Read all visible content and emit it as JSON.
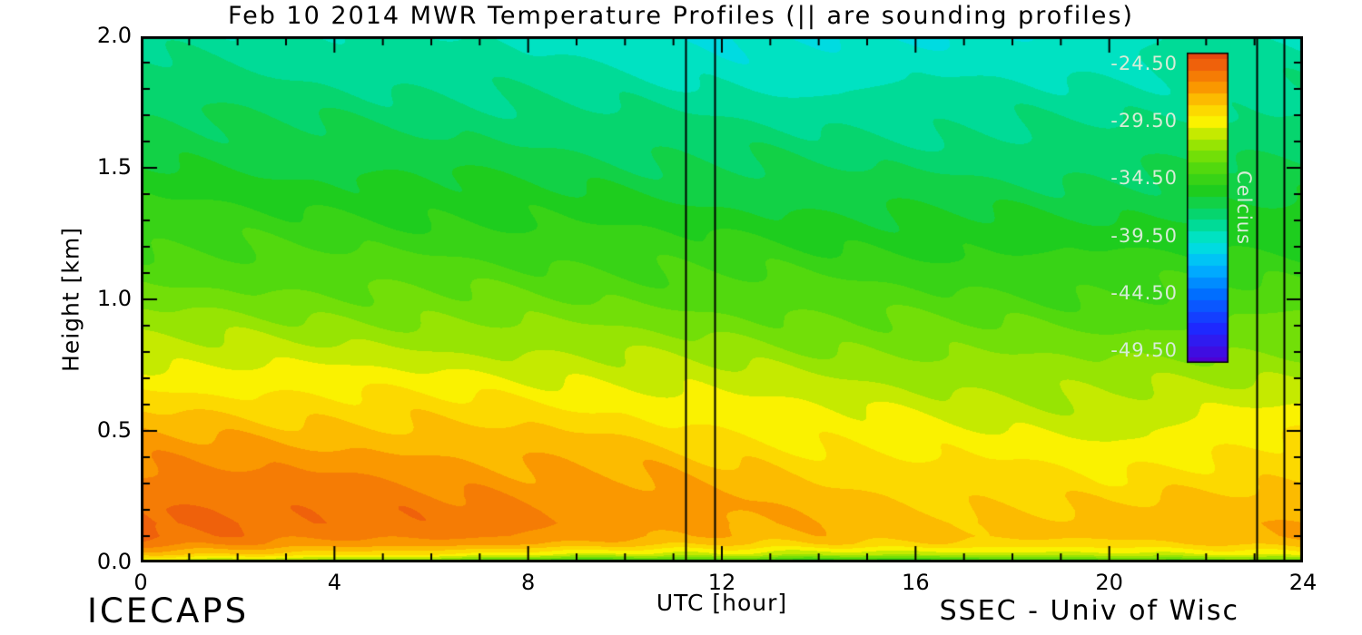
{
  "figure": {
    "footer_left": "ICECAPS",
    "footer_right": "SSEC - Univ of Wisc",
    "background_color": "#ffffff",
    "text_color": "#000000"
  },
  "chart_data": {
    "type": "heatmap",
    "title": "Feb 10 2014 MWR Temperature Profiles (|| are sounding profiles)",
    "xlabel": "UTC [hour]",
    "ylabel": "Height [km]",
    "xlim": [
      0,
      24
    ],
    "ylim": [
      0,
      2
    ],
    "xticks_major": [
      0,
      4,
      8,
      12,
      16,
      20,
      24
    ],
    "xtick_labels": [
      "0",
      "4",
      "8",
      "12",
      "16",
      "20",
      "24"
    ],
    "xticks_minor_step": 1,
    "yticks_major": [
      0.0,
      0.5,
      1.0,
      1.5,
      2.0
    ],
    "ytick_labels": [
      "0.0",
      "0.5",
      "1.0",
      "1.5",
      "2.0"
    ],
    "yticks_minor_step": 0.1,
    "grid": false,
    "contour_interval_c": 1.0,
    "sounding_profile_times_utc": [
      11.25,
      11.85,
      23.05,
      23.6
    ],
    "x_hours": [
      0,
      2,
      4,
      6,
      8,
      10,
      12,
      14,
      16,
      18,
      20,
      22,
      24
    ],
    "y_heights_km": [
      0.0,
      0.03,
      0.07,
      0.1,
      0.15,
      0.2,
      0.25,
      0.3,
      0.4,
      0.5,
      0.6,
      0.7,
      0.8,
      0.9,
      1.0,
      1.2,
      1.4,
      1.6,
      1.8,
      2.0
    ],
    "temperature_c": [
      [
        -31.5,
        -32.0,
        -32.5,
        -33.0,
        -35.5,
        -36.0,
        -34.5,
        -36.0,
        -36.5,
        -35.5,
        -34.5,
        -34.0,
        -33.5
      ],
      [
        -28.0,
        -28.2,
        -28.5,
        -28.8,
        -30.0,
        -30.5,
        -30.0,
        -30.8,
        -31.0,
        -30.5,
        -30.2,
        -30.0,
        -29.8
      ],
      [
        -25.8,
        -26.0,
        -26.3,
        -26.5,
        -27.2,
        -27.5,
        -27.8,
        -28.2,
        -28.4,
        -28.3,
        -28.2,
        -28.0,
        -27.8
      ],
      [
        -25.0,
        -25.2,
        -25.6,
        -25.8,
        -26.3,
        -26.6,
        -27.0,
        -27.5,
        -27.8,
        -27.7,
        -27.6,
        -27.4,
        -27.2
      ],
      [
        -24.7,
        -24.9,
        -25.3,
        -25.5,
        -25.9,
        -26.2,
        -26.8,
        -27.4,
        -27.7,
        -27.6,
        -27.5,
        -27.3,
        -27.1
      ],
      [
        -24.8,
        -25.0,
        -25.4,
        -25.6,
        -25.9,
        -26.3,
        -26.9,
        -27.5,
        -27.9,
        -27.9,
        -28.0,
        -27.6,
        -27.3
      ],
      [
        -25.0,
        -25.3,
        -25.6,
        -25.8,
        -26.1,
        -26.5,
        -27.1,
        -27.7,
        -28.1,
        -28.2,
        -28.4,
        -27.9,
        -27.5
      ],
      [
        -25.4,
        -25.7,
        -25.9,
        -26.1,
        -26.4,
        -26.8,
        -27.4,
        -28.0,
        -28.4,
        -28.6,
        -29.0,
        -28.2,
        -27.8
      ],
      [
        -26.2,
        -26.4,
        -26.6,
        -26.8,
        -27.1,
        -27.5,
        -28.1,
        -28.6,
        -29.0,
        -29.3,
        -29.5,
        -28.9,
        -28.4
      ],
      [
        -27.2,
        -27.4,
        -27.6,
        -27.8,
        -28.0,
        -28.4,
        -28.9,
        -29.4,
        -29.7,
        -30.0,
        -30.1,
        -29.6,
        -29.2
      ],
      [
        -28.3,
        -28.4,
        -28.6,
        -28.7,
        -28.9,
        -29.2,
        -29.7,
        -30.1,
        -30.4,
        -30.7,
        -30.8,
        -30.4,
        -30.0
      ],
      [
        -29.4,
        -29.5,
        -29.6,
        -29.7,
        -29.9,
        -30.2,
        -30.6,
        -30.9,
        -31.2,
        -31.4,
        -31.5,
        -31.2,
        -30.9
      ],
      [
        -30.5,
        -30.6,
        -30.7,
        -30.8,
        -31.0,
        -31.2,
        -31.5,
        -31.8,
        -32.0,
        -32.2,
        -32.3,
        -32.0,
        -31.8
      ],
      [
        -31.5,
        -31.6,
        -31.7,
        -31.8,
        -32.0,
        -32.2,
        -32.4,
        -32.7,
        -32.9,
        -33.0,
        -33.1,
        -32.9,
        -32.7
      ],
      [
        -32.5,
        -32.6,
        -32.7,
        -32.8,
        -32.9,
        -33.1,
        -33.3,
        -33.5,
        -33.7,
        -33.8,
        -33.9,
        -33.7,
        -33.5
      ],
      [
        -34.0,
        -34.1,
        -34.2,
        -34.3,
        -34.4,
        -34.6,
        -34.8,
        -35.0,
        -35.1,
        -35.2,
        -35.3,
        -35.1,
        -35.0
      ],
      [
        -35.3,
        -35.4,
        -35.5,
        -35.6,
        -35.8,
        -36.0,
        -36.2,
        -36.4,
        -36.5,
        -36.6,
        -36.6,
        -36.4,
        -36.3
      ],
      [
        -36.4,
        -36.5,
        -36.7,
        -36.8,
        -37.0,
        -37.3,
        -37.5,
        -37.7,
        -37.8,
        -37.8,
        -37.7,
        -37.5,
        -37.4
      ],
      [
        -37.4,
        -37.6,
        -37.8,
        -38.0,
        -38.3,
        -38.6,
        -38.9,
        -39.0,
        -39.0,
        -38.9,
        -38.7,
        -38.4,
        -38.3
      ],
      [
        -38.2,
        -38.5,
        -38.8,
        -39.0,
        -39.4,
        -39.8,
        -40.1,
        -40.2,
        -40.0,
        -39.7,
        -39.4,
        -39.1,
        -39.0
      ]
    ],
    "colormap_stops": [
      {
        "t": -50.5,
        "rgb": [
          80,
          0,
          210
        ]
      },
      {
        "t": -47.5,
        "rgb": [
          30,
          40,
          255
        ]
      },
      {
        "t": -44.5,
        "rgb": [
          0,
          110,
          255
        ]
      },
      {
        "t": -42.0,
        "rgb": [
          0,
          185,
          255
        ]
      },
      {
        "t": -40.0,
        "rgb": [
          0,
          230,
          215
        ]
      },
      {
        "t": -38.0,
        "rgb": [
          0,
          215,
          130
        ]
      },
      {
        "t": -35.5,
        "rgb": [
          30,
          205,
          30
        ]
      },
      {
        "t": -33.0,
        "rgb": [
          95,
          220,
          10
        ]
      },
      {
        "t": -31.0,
        "rgb": [
          170,
          230,
          0
        ]
      },
      {
        "t": -29.5,
        "rgb": [
          250,
          242,
          0
        ]
      },
      {
        "t": -28.0,
        "rgb": [
          253,
          205,
          0
        ]
      },
      {
        "t": -26.5,
        "rgb": [
          250,
          152,
          0
        ]
      },
      {
        "t": -25.0,
        "rgb": [
          243,
          110,
          8
        ]
      },
      {
        "t": -23.5,
        "rgb": [
          230,
          72,
          16
        ]
      }
    ],
    "colorbar": {
      "label": "Celcius",
      "tick_labels": [
        "-24.50",
        "-29.50",
        "-34.50",
        "-39.50",
        "-44.50",
        "-49.50"
      ],
      "tick_values": [
        -24.5,
        -29.5,
        -34.5,
        -39.5,
        -44.5,
        -49.5
      ],
      "top_value": -23.5,
      "bottom_value": -50.5,
      "label_color": "#d6ecd6"
    }
  }
}
